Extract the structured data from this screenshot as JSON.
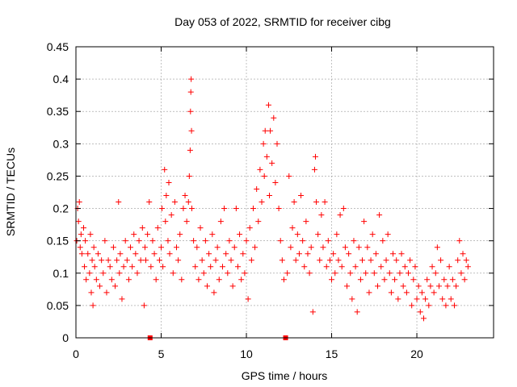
{
  "chart_data": {
    "type": "scatter",
    "title": "Day 053 of 2022, SRMTID for receiver cibg",
    "xlabel": "GPS time / hours",
    "ylabel": "SRMTID / TECUs",
    "xlim": [
      0,
      24.5
    ],
    "ylim": [
      0,
      0.45
    ],
    "xticks": [
      0,
      5,
      10,
      15,
      20
    ],
    "xtick_labels": [
      "0",
      "5",
      "10",
      "15",
      "20"
    ],
    "yticks": [
      0,
      0.05,
      0.1,
      0.15,
      0.2,
      0.25,
      0.3,
      0.35,
      0.4,
      0.45
    ],
    "ytick_labels": [
      "0",
      "0.05",
      "0.1",
      "0.15",
      "0.2",
      "0.25",
      "0.3",
      "0.35",
      "0.4",
      "0.45"
    ],
    "grid": true,
    "marker": "+",
    "color": "#ff0000",
    "baseline_markers_x": [
      4.35,
      12.3
    ],
    "series": [
      {
        "name": "SRMTID",
        "points": [
          [
            0.05,
            0.15
          ],
          [
            0.1,
            0.2
          ],
          [
            0.15,
            0.18
          ],
          [
            0.2,
            0.21
          ],
          [
            0.25,
            0.14
          ],
          [
            0.3,
            0.16
          ],
          [
            0.35,
            0.13
          ],
          [
            0.45,
            0.17
          ],
          [
            0.5,
            0.11
          ],
          [
            0.55,
            0.15
          ],
          [
            0.6,
            0.09
          ],
          [
            0.7,
            0.13
          ],
          [
            0.8,
            0.1
          ],
          [
            0.85,
            0.16
          ],
          [
            0.9,
            0.07
          ],
          [
            0.95,
            0.12
          ],
          [
            1.0,
            0.05
          ],
          [
            1.05,
            0.14
          ],
          [
            1.1,
            0.11
          ],
          [
            1.2,
            0.09
          ],
          [
            1.3,
            0.13
          ],
          [
            1.4,
            0.08
          ],
          [
            1.5,
            0.12
          ],
          [
            1.6,
            0.1
          ],
          [
            1.7,
            0.15
          ],
          [
            1.8,
            0.07
          ],
          [
            1.9,
            0.12
          ],
          [
            2.0,
            0.11
          ],
          [
            2.1,
            0.09
          ],
          [
            2.2,
            0.14
          ],
          [
            2.3,
            0.08
          ],
          [
            2.4,
            0.12
          ],
          [
            2.5,
            0.21
          ],
          [
            2.55,
            0.1
          ],
          [
            2.6,
            0.13
          ],
          [
            2.7,
            0.06
          ],
          [
            2.8,
            0.11
          ],
          [
            2.9,
            0.15
          ],
          [
            3.0,
            0.12
          ],
          [
            3.1,
            0.09
          ],
          [
            3.2,
            0.14
          ],
          [
            3.3,
            0.11
          ],
          [
            3.4,
            0.16
          ],
          [
            3.5,
            0.13
          ],
          [
            3.6,
            0.1
          ],
          [
            3.7,
            0.15
          ],
          [
            3.8,
            0.12
          ],
          [
            3.9,
            0.17
          ],
          [
            4.0,
            0.05
          ],
          [
            4.05,
            0.14
          ],
          [
            4.1,
            0.12
          ],
          [
            4.2,
            0.16
          ],
          [
            4.3,
            0.21
          ],
          [
            4.4,
            0.11
          ],
          [
            4.5,
            0.15
          ],
          [
            4.6,
            0.13
          ],
          [
            4.7,
            0.09
          ],
          [
            4.8,
            0.17
          ],
          [
            4.9,
            0.12
          ],
          [
            5.0,
            0.14
          ],
          [
            5.05,
            0.2
          ],
          [
            5.1,
            0.11
          ],
          [
            5.2,
            0.26
          ],
          [
            5.25,
            0.18
          ],
          [
            5.3,
            0.22
          ],
          [
            5.4,
            0.15
          ],
          [
            5.45,
            0.24
          ],
          [
            5.5,
            0.13
          ],
          [
            5.6,
            0.19
          ],
          [
            5.7,
            0.1
          ],
          [
            5.8,
            0.21
          ],
          [
            5.9,
            0.14
          ],
          [
            6.0,
            0.12
          ],
          [
            6.1,
            0.16
          ],
          [
            6.2,
            0.09
          ],
          [
            6.3,
            0.2
          ],
          [
            6.4,
            0.22
          ],
          [
            6.5,
            0.18
          ],
          [
            6.6,
            0.21
          ],
          [
            6.65,
            0.25
          ],
          [
            6.7,
            0.29
          ],
          [
            6.72,
            0.35
          ],
          [
            6.74,
            0.38
          ],
          [
            6.76,
            0.4
          ],
          [
            6.78,
            0.32
          ],
          [
            6.8,
            0.2
          ],
          [
            6.9,
            0.15
          ],
          [
            7.0,
            0.11
          ],
          [
            7.1,
            0.14
          ],
          [
            7.2,
            0.09
          ],
          [
            7.3,
            0.17
          ],
          [
            7.4,
            0.12
          ],
          [
            7.5,
            0.1
          ],
          [
            7.6,
            0.15
          ],
          [
            7.7,
            0.08
          ],
          [
            7.8,
            0.13
          ],
          [
            7.9,
            0.11
          ],
          [
            8.0,
            0.16
          ],
          [
            8.1,
            0.07
          ],
          [
            8.2,
            0.12
          ],
          [
            8.3,
            0.14
          ],
          [
            8.4,
            0.09
          ],
          [
            8.5,
            0.18
          ],
          [
            8.6,
            0.11
          ],
          [
            8.7,
            0.2
          ],
          [
            8.8,
            0.13
          ],
          [
            8.9,
            0.1
          ],
          [
            9.0,
            0.15
          ],
          [
            9.1,
            0.12
          ],
          [
            9.2,
            0.08
          ],
          [
            9.3,
            0.14
          ],
          [
            9.4,
            0.2
          ],
          [
            9.5,
            0.11
          ],
          [
            9.6,
            0.16
          ],
          [
            9.7,
            0.09
          ],
          [
            9.8,
            0.13
          ],
          [
            9.9,
            0.1
          ],
          [
            10.0,
            0.15
          ],
          [
            10.1,
            0.06
          ],
          [
            10.2,
            0.17
          ],
          [
            10.3,
            0.12
          ],
          [
            10.4,
            0.2
          ],
          [
            10.5,
            0.14
          ],
          [
            10.6,
            0.23
          ],
          [
            10.7,
            0.18
          ],
          [
            10.8,
            0.26
          ],
          [
            10.9,
            0.21
          ],
          [
            11.0,
            0.3
          ],
          [
            11.05,
            0.25
          ],
          [
            11.1,
            0.32
          ],
          [
            11.2,
            0.28
          ],
          [
            11.3,
            0.36
          ],
          [
            11.35,
            0.22
          ],
          [
            11.4,
            0.32
          ],
          [
            11.5,
            0.27
          ],
          [
            11.6,
            0.34
          ],
          [
            11.7,
            0.24
          ],
          [
            11.8,
            0.3
          ],
          [
            11.9,
            0.2
          ],
          [
            12.0,
            0.15
          ],
          [
            12.1,
            0.12
          ],
          [
            12.2,
            0.09
          ],
          [
            12.4,
            0.1
          ],
          [
            12.5,
            0.25
          ],
          [
            12.6,
            0.14
          ],
          [
            12.7,
            0.17
          ],
          [
            12.8,
            0.21
          ],
          [
            12.9,
            0.12
          ],
          [
            13.0,
            0.16
          ],
          [
            13.1,
            0.13
          ],
          [
            13.2,
            0.22
          ],
          [
            13.3,
            0.15
          ],
          [
            13.4,
            0.11
          ],
          [
            13.5,
            0.18
          ],
          [
            13.6,
            0.13
          ],
          [
            13.7,
            0.1
          ],
          [
            13.8,
            0.14
          ],
          [
            13.9,
            0.04
          ],
          [
            14.0,
            0.26
          ],
          [
            14.05,
            0.28
          ],
          [
            14.1,
            0.21
          ],
          [
            14.2,
            0.16
          ],
          [
            14.3,
            0.12
          ],
          [
            14.4,
            0.19
          ],
          [
            14.5,
            0.14
          ],
          [
            14.6,
            0.21
          ],
          [
            14.7,
            0.11
          ],
          [
            14.8,
            0.15
          ],
          [
            14.9,
            0.12
          ],
          [
            15.0,
            0.09
          ],
          [
            15.1,
            0.13
          ],
          [
            15.2,
            0.1
          ],
          [
            15.3,
            0.16
          ],
          [
            15.4,
            0.12
          ],
          [
            15.5,
            0.19
          ],
          [
            15.6,
            0.11
          ],
          [
            15.7,
            0.2
          ],
          [
            15.8,
            0.14
          ],
          [
            15.9,
            0.08
          ],
          [
            16.0,
            0.13
          ],
          [
            16.1,
            0.1
          ],
          [
            16.2,
            0.06
          ],
          [
            16.3,
            0.15
          ],
          [
            16.4,
            0.11
          ],
          [
            16.5,
            0.04
          ],
          [
            16.6,
            0.14
          ],
          [
            16.7,
            0.09
          ],
          [
            16.8,
            0.12
          ],
          [
            16.9,
            0.18
          ],
          [
            17.0,
            0.1
          ],
          [
            17.1,
            0.14
          ],
          [
            17.2,
            0.07
          ],
          [
            17.3,
            0.12
          ],
          [
            17.4,
            0.16
          ],
          [
            17.5,
            0.1
          ],
          [
            17.6,
            0.13
          ],
          [
            17.7,
            0.08
          ],
          [
            17.8,
            0.19
          ],
          [
            17.9,
            0.11
          ],
          [
            18.0,
            0.15
          ],
          [
            18.1,
            0.09
          ],
          [
            18.2,
            0.12
          ],
          [
            18.3,
            0.16
          ],
          [
            18.4,
            0.1
          ],
          [
            18.5,
            0.07
          ],
          [
            18.6,
            0.13
          ],
          [
            18.7,
            0.09
          ],
          [
            18.8,
            0.12
          ],
          [
            18.9,
            0.06
          ],
          [
            19.0,
            0.1
          ],
          [
            19.1,
            0.13
          ],
          [
            19.2,
            0.08
          ],
          [
            19.3,
            0.11
          ],
          [
            19.4,
            0.07
          ],
          [
            19.5,
            0.1
          ],
          [
            19.6,
            0.12
          ],
          [
            19.7,
            0.05
          ],
          [
            19.8,
            0.09
          ],
          [
            19.9,
            0.11
          ],
          [
            20.0,
            0.06
          ],
          [
            20.1,
            0.08
          ],
          [
            20.2,
            0.04
          ],
          [
            20.3,
            0.07
          ],
          [
            20.4,
            0.03
          ],
          [
            20.5,
            0.06
          ],
          [
            20.6,
            0.09
          ],
          [
            20.7,
            0.05
          ],
          [
            20.8,
            0.08
          ],
          [
            20.9,
            0.11
          ],
          [
            21.0,
            0.07
          ],
          [
            21.1,
            0.1
          ],
          [
            21.2,
            0.14
          ],
          [
            21.3,
            0.08
          ],
          [
            21.4,
            0.12
          ],
          [
            21.5,
            0.06
          ],
          [
            21.6,
            0.09
          ],
          [
            21.7,
            0.05
          ],
          [
            21.8,
            0.08
          ],
          [
            21.9,
            0.11
          ],
          [
            22.0,
            0.06
          ],
          [
            22.1,
            0.09
          ],
          [
            22.2,
            0.05
          ],
          [
            22.3,
            0.08
          ],
          [
            22.4,
            0.12
          ],
          [
            22.5,
            0.15
          ],
          [
            22.6,
            0.1
          ],
          [
            22.7,
            0.13
          ],
          [
            22.8,
            0.09
          ],
          [
            22.9,
            0.12
          ],
          [
            23.0,
            0.11
          ]
        ]
      }
    ]
  }
}
